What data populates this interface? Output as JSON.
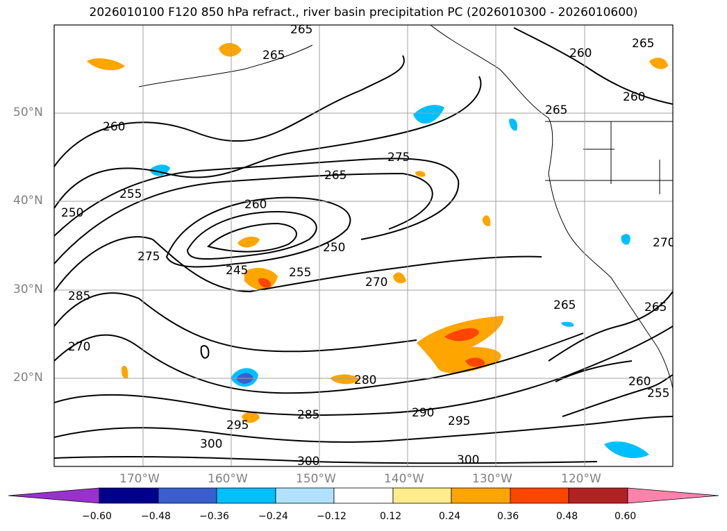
{
  "title": "2026010100 F120 850 hPa refract., river basin precipitation PC (2026010300 - 2026010600)",
  "axes": {
    "lat_labels": [
      "50°N",
      "40°N",
      "30°N",
      "20°N"
    ],
    "lon_labels": [
      "170°W",
      "160°W",
      "150°W",
      "140°W",
      "130°W",
      "120°W"
    ]
  },
  "contour_labels": [
    "265",
    "265",
    "260",
    "265",
    "260",
    "265",
    "260",
    "275",
    "265",
    "255",
    "250",
    "260",
    "250",
    "275",
    "245",
    "255",
    "270",
    "285",
    "265",
    "270",
    "280",
    "285",
    "295",
    "290",
    "295",
    "300",
    "300",
    "300",
    "260",
    "255",
    "270",
    "265"
  ],
  "colorbar": {
    "ticks": [
      "−0.60",
      "−0.48",
      "−0.36",
      "−0.24",
      "−0.12",
      "0.12",
      "0.24",
      "0.36",
      "0.48",
      "0.60"
    ],
    "colors": [
      "#9932cc",
      "#00008b",
      "#3a5fcd",
      "#00bfff",
      "#b0e2ff",
      "#ffffff",
      "#ffec8b",
      "#ffa500",
      "#ff4500",
      "#b22222",
      "#ff82ab"
    ]
  }
}
